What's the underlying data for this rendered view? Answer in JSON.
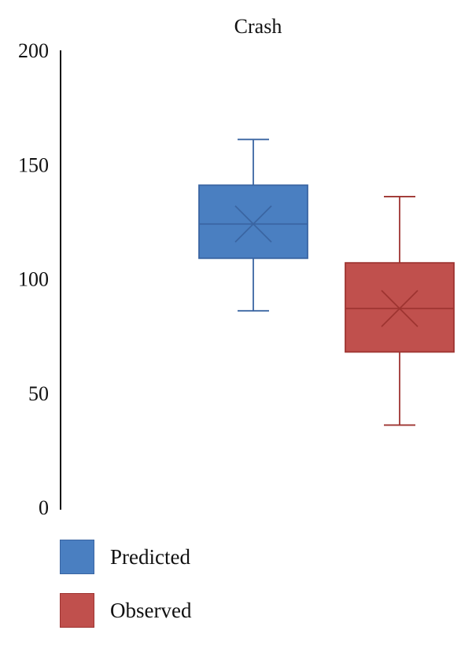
{
  "chart_data": {
    "type": "box",
    "title": "Crash",
    "xlabel": "",
    "ylabel": "",
    "ylim": [
      0,
      200
    ],
    "yticks": [
      "0",
      "50",
      "100",
      "150",
      "200"
    ],
    "grid": false,
    "legend_position": "bottom-left",
    "series": [
      {
        "name": "Predicted",
        "color": "#4a7fc1",
        "stroke": "#3a65a2",
        "min": 86,
        "q1": 109,
        "median": 124,
        "mean": 124,
        "q3": 141,
        "max": 161
      },
      {
        "name": "Observed",
        "color": "#c0504d",
        "stroke": "#9e3431",
        "min": 36,
        "q1": 68,
        "median": 87,
        "mean": 87,
        "q3": 107,
        "max": 136
      }
    ]
  },
  "legend": {
    "items": [
      {
        "label": "Predicted",
        "color": "#4a7fc1",
        "stroke": "#3a65a2"
      },
      {
        "label": "Observed",
        "color": "#c0504d",
        "stroke": "#9e3431"
      }
    ]
  }
}
